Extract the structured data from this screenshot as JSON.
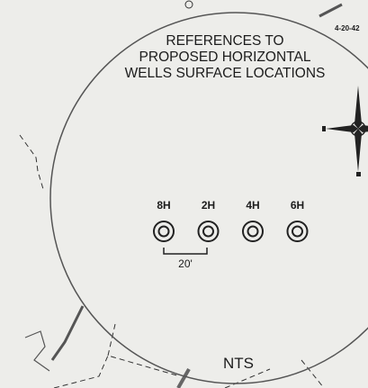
{
  "title": {
    "lines": [
      "REFERENCES TO",
      "PROPOSED HORIZONTAL",
      "WELLS SURFACE LOCATIONS"
    ]
  },
  "wells": [
    {
      "label": "8H"
    },
    {
      "label": "2H"
    },
    {
      "label": "4H"
    },
    {
      "label": "6H"
    }
  ],
  "spacing_label": "20'",
  "scale_label": "NTS",
  "corner_label": "4-20-42"
}
